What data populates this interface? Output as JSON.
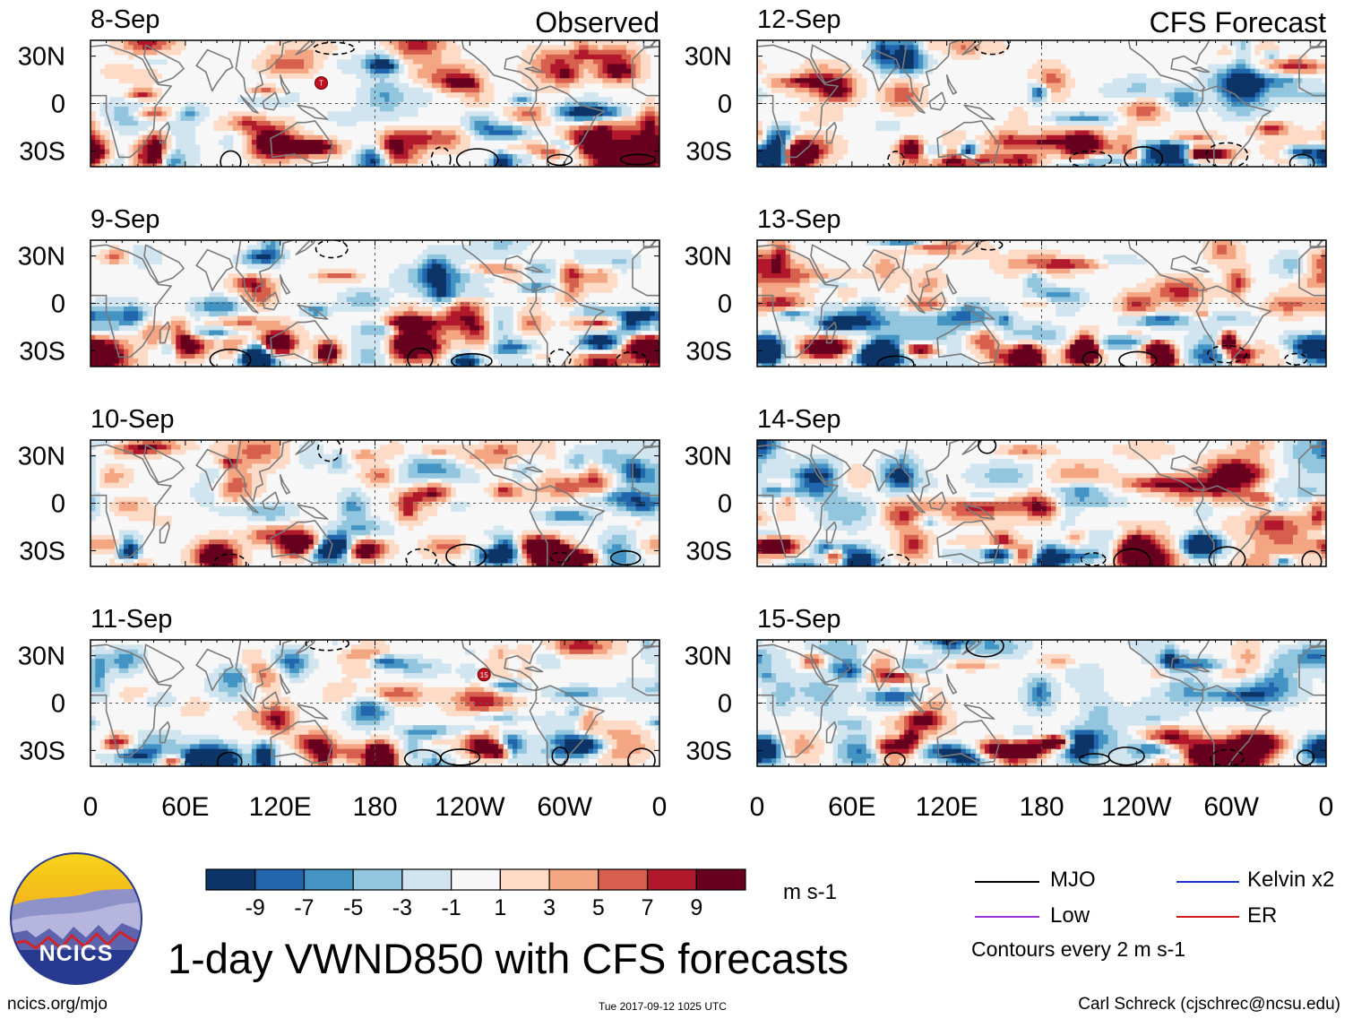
{
  "chart_data": {
    "type": "heatmap",
    "title": "1-day VWND850 with CFS forecasts",
    "variable": "VWND850",
    "units": "m s-1",
    "colorbar": {
      "tick_labels": [
        "-9",
        "-7",
        "-5",
        "-3",
        "-1",
        "1",
        "3",
        "5",
        "7",
        "9"
      ],
      "boundaries": [
        -11,
        -9,
        -7,
        -5,
        -3,
        -1,
        1,
        3,
        5,
        7,
        9,
        11
      ],
      "colors": [
        "#0d3466",
        "#2166ac",
        "#4393c3",
        "#92c5de",
        "#d1e5f0",
        "#f7f7f7",
        "#fddbc7",
        "#f4a582",
        "#d6604d",
        "#b2182b",
        "#67001f"
      ]
    },
    "x_ticks": [
      "0",
      "60E",
      "120E",
      "180",
      "120W",
      "60W",
      "0"
    ],
    "y_ticks": [
      "30N",
      "0",
      "30S"
    ],
    "xlim_deg": [
      0,
      360
    ],
    "ylim_deg": [
      -40,
      40
    ],
    "columns": [
      {
        "label": "Observed",
        "panels": [
          "8-Sep",
          "9-Sep",
          "10-Sep",
          "11-Sep"
        ]
      },
      {
        "label": "CFS Forecast",
        "panels": [
          "12-Sep",
          "13-Sep",
          "14-Sep",
          "15-Sep"
        ]
      }
    ],
    "storm_markers": [
      {
        "panel": "8-Sep",
        "label": "T",
        "lon": 146,
        "lat": 13
      },
      {
        "panel": "11-Sep",
        "label": "15",
        "lon": 249,
        "lat": 18
      }
    ],
    "legend": [
      {
        "label": "MJO",
        "color": "#000000",
        "style": "solid"
      },
      {
        "label": "Kelvin x2",
        "color": "#1f2fd0",
        "style": "solid"
      },
      {
        "label": "Low",
        "color": "#9b30d9",
        "style": "solid"
      },
      {
        "label": "ER",
        "color": "#d01a1a",
        "style": "solid"
      }
    ],
    "contour_note": "Contours every 2 m s-1"
  },
  "logo": {
    "text": "NCICS"
  },
  "footer": {
    "left": "ncics.org/mjo",
    "center": "Tue 2017-09-12 1025 UTC",
    "right": "Carl Schreck (cjschrec@ncsu.edu)"
  }
}
